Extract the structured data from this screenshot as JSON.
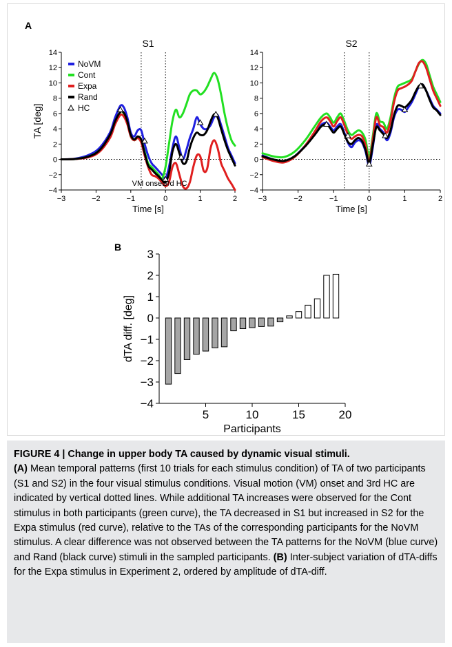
{
  "figure": {
    "panel_a_label": "A",
    "panel_b_label": "B",
    "subplots": [
      {
        "title": "S1",
        "ylabel": "TA [deg]",
        "xlabel": "Time [s]"
      },
      {
        "title": "S2",
        "ylabel": "",
        "xlabel": "Time [s]"
      }
    ],
    "annotations": {
      "vm_onset": "VM onset",
      "third_hc": "3rd HC"
    },
    "legend": [
      {
        "label": "NoVM",
        "color": "#1f1fe0"
      },
      {
        "label": "Cont",
        "color": "#22e022"
      },
      {
        "label": "Expa",
        "color": "#e01f1f"
      },
      {
        "label": "Rand",
        "color": "#000000"
      },
      {
        "label": "HC",
        "marker": "triangle"
      }
    ]
  },
  "chart_data": [
    {
      "type": "line",
      "title": "S1",
      "xlabel": "Time [s]",
      "ylabel": "TA [deg]",
      "xlim": [
        -3,
        2
      ],
      "ylim": [
        -4,
        14
      ],
      "xticks": [
        -3,
        -2,
        -1,
        0,
        1,
        2
      ],
      "yticks": [
        -4,
        -2,
        0,
        2,
        4,
        6,
        8,
        10,
        12,
        14
      ],
      "vlines": [
        -0.7,
        0
      ],
      "hline": 0,
      "annotations": [
        "VM onset",
        "3rd HC"
      ],
      "series": [
        {
          "name": "NoVM",
          "color": "#1f1fe0",
          "x": [
            -3,
            -2.6,
            -2.2,
            -1.9,
            -1.6,
            -1.45,
            -1.3,
            -1.2,
            -1.1,
            -1.0,
            -0.9,
            -0.8,
            -0.7,
            -0.6,
            -0.5,
            -0.4,
            -0.3,
            -0.2,
            -0.1,
            0,
            0.1,
            0.2,
            0.3,
            0.4,
            0.5,
            0.6,
            0.7,
            0.8,
            0.9,
            1.0,
            1.1,
            1.2,
            1.3,
            1.4,
            1.5,
            1.6,
            1.7,
            1.8,
            1.9,
            2.0
          ],
          "y": [
            0,
            0.1,
            0.6,
            1.5,
            3.5,
            5.5,
            7,
            6.8,
            5.5,
            3.5,
            3,
            3.8,
            3.8,
            2,
            0.5,
            -0.5,
            -1,
            -1.5,
            -2,
            -2.5,
            -1,
            1.5,
            3,
            1.5,
            0,
            1.2,
            2.8,
            4,
            5.5,
            4.6,
            4,
            4,
            4.5,
            5.5,
            5.8,
            4.5,
            3,
            1.5,
            0.5,
            -0.5
          ]
        },
        {
          "name": "Cont",
          "color": "#22e022",
          "x": [
            -3,
            -2.6,
            -2.2,
            -1.9,
            -1.6,
            -1.45,
            -1.3,
            -1.2,
            -1.1,
            -1.0,
            -0.9,
            -0.8,
            -0.7,
            -0.6,
            -0.5,
            -0.4,
            -0.3,
            -0.2,
            -0.1,
            0,
            0.1,
            0.2,
            0.3,
            0.4,
            0.5,
            0.6,
            0.7,
            0.8,
            0.9,
            1.0,
            1.1,
            1.2,
            1.3,
            1.4,
            1.5,
            1.6,
            1.7,
            1.8,
            1.9,
            2.0
          ],
          "y": [
            0,
            0.05,
            0.4,
            1.2,
            3,
            4.8,
            6.2,
            6,
            4.8,
            3,
            2.5,
            2.8,
            2.5,
            1,
            -0.5,
            -1,
            -1.5,
            -2,
            -2.5,
            -1,
            2,
            5,
            6.5,
            5.5,
            6,
            7.2,
            8.5,
            9,
            9,
            8.5,
            8.8,
            9.5,
            10.5,
            11.3,
            10.5,
            8.5,
            6,
            4,
            2.5,
            1.8
          ]
        },
        {
          "name": "Expa",
          "color": "#e01f1f",
          "x": [
            -3,
            -2.6,
            -2.2,
            -1.9,
            -1.6,
            -1.45,
            -1.3,
            -1.2,
            -1.1,
            -1.0,
            -0.9,
            -0.8,
            -0.7,
            -0.6,
            -0.5,
            -0.4,
            -0.3,
            -0.2,
            -0.1,
            0,
            0.1,
            0.2,
            0.3,
            0.4,
            0.5,
            0.6,
            0.7,
            0.8,
            0.9,
            1.0,
            1.1,
            1.2,
            1.3,
            1.4,
            1.5,
            1.6,
            1.7,
            1.8,
            1.9,
            2.0
          ],
          "y": [
            0,
            0.05,
            0.3,
            1,
            2.8,
            4.6,
            5.8,
            5.6,
            4.6,
            3,
            2.5,
            2.8,
            2.2,
            0.5,
            -1,
            -2,
            -2.2,
            -2.5,
            -3,
            -3.5,
            -3,
            -1,
            -0.5,
            -2,
            -3.5,
            -3.8,
            -3,
            -1,
            0.5,
            0.4,
            -1.5,
            -1.2,
            1.5,
            2.5,
            1.5,
            -0.5,
            -1.5,
            -2.5,
            -3.2,
            -4
          ]
        },
        {
          "name": "Rand",
          "color": "#000000",
          "x": [
            -3,
            -2.6,
            -2.2,
            -1.9,
            -1.6,
            -1.45,
            -1.3,
            -1.2,
            -1.1,
            -1.0,
            -0.9,
            -0.8,
            -0.7,
            -0.6,
            -0.5,
            -0.4,
            -0.3,
            -0.2,
            -0.1,
            0,
            0.1,
            0.2,
            0.3,
            0.4,
            0.5,
            0.6,
            0.7,
            0.8,
            0.9,
            1.0,
            1.1,
            1.2,
            1.3,
            1.4,
            1.5,
            1.6,
            1.7,
            1.8,
            1.9,
            2.0
          ],
          "y": [
            0,
            0.05,
            0.4,
            1.2,
            3.2,
            5,
            6.2,
            6.1,
            5,
            3.2,
            2.6,
            3,
            2.6,
            0.8,
            -0.8,
            -1.3,
            -1.8,
            -2.2,
            -2.7,
            -3,
            -1.8,
            1,
            2,
            0.8,
            -0.5,
            -0.3,
            1.5,
            2.8,
            3.5,
            3.2,
            3.2,
            3.8,
            5,
            5.9,
            5.5,
            4,
            2.5,
            1.2,
            0.2,
            -0.8
          ]
        }
      ],
      "hc_markers": {
        "x": [
          -1.3,
          -0.6,
          0,
          0.45,
          1.0,
          1.45
        ],
        "y": [
          6.5,
          2.4,
          -2.6,
          0.3,
          4.8,
          5.9
        ]
      }
    },
    {
      "type": "line",
      "title": "S2",
      "xlabel": "Time [s]",
      "ylabel": "",
      "xlim": [
        -3,
        2
      ],
      "ylim": [
        -4,
        14
      ],
      "xticks": [
        -3,
        -2,
        -1,
        0,
        1,
        2
      ],
      "yticks": [
        -4,
        -2,
        0,
        2,
        4,
        6,
        8,
        10,
        12,
        14
      ],
      "vlines": [
        -0.7,
        0
      ],
      "hline": 0,
      "series": [
        {
          "name": "NoVM",
          "color": "#1f1fe0",
          "x": [
            -3,
            -2.7,
            -2.4,
            -2.1,
            -1.8,
            -1.55,
            -1.35,
            -1.2,
            -1.1,
            -1.0,
            -0.9,
            -0.8,
            -0.7,
            -0.6,
            -0.5,
            -0.4,
            -0.3,
            -0.2,
            -0.1,
            0,
            0.1,
            0.2,
            0.3,
            0.4,
            0.5,
            0.6,
            0.7,
            0.8,
            0.9,
            1.0,
            1.1,
            1.2,
            1.3,
            1.4,
            1.5,
            1.6,
            1.7,
            1.8,
            1.9,
            2.0
          ],
          "y": [
            0.5,
            0,
            -0.3,
            0.4,
            1.8,
            3.3,
            4.5,
            4.8,
            4.3,
            3.8,
            4.3,
            4.6,
            3.5,
            2.2,
            1.6,
            2.2,
            2.5,
            2.2,
            1,
            -0.8,
            1.5,
            4.5,
            4,
            3.5,
            2.5,
            3.5,
            5.5,
            6.5,
            6.5,
            6.2,
            6.8,
            7.5,
            8.5,
            9.5,
            9.8,
            9,
            8,
            7,
            6.5,
            6
          ]
        },
        {
          "name": "Cont",
          "color": "#22e022",
          "x": [
            -3,
            -2.7,
            -2.4,
            -2.1,
            -1.8,
            -1.55,
            -1.35,
            -1.2,
            -1.1,
            -1.0,
            -0.9,
            -0.8,
            -0.7,
            -0.6,
            -0.5,
            -0.4,
            -0.3,
            -0.2,
            -0.1,
            0,
            0.1,
            0.2,
            0.3,
            0.4,
            0.5,
            0.6,
            0.7,
            0.8,
            0.9,
            1.0,
            1.1,
            1.2,
            1.3,
            1.4,
            1.5,
            1.6,
            1.7,
            1.8,
            1.9,
            2.0
          ],
          "y": [
            0.8,
            0.4,
            0.3,
            1,
            2.5,
            4.2,
            5.5,
            6,
            5.5,
            4.8,
            5.5,
            6,
            5,
            3.8,
            3.2,
            3.5,
            3.8,
            3.5,
            2.5,
            0.3,
            3,
            6,
            5,
            4.8,
            4,
            5.5,
            8,
            9.5,
            9.8,
            10,
            10.2,
            10.5,
            11.5,
            12.5,
            13,
            12.5,
            11,
            9.5,
            8.5,
            7.5
          ]
        },
        {
          "name": "Expa",
          "color": "#e01f1f",
          "x": [
            -3,
            -2.7,
            -2.4,
            -2.1,
            -1.8,
            -1.55,
            -1.35,
            -1.2,
            -1.1,
            -1.0,
            -0.9,
            -0.8,
            -0.7,
            -0.6,
            -0.5,
            -0.4,
            -0.3,
            -0.2,
            -0.1,
            0,
            0.1,
            0.2,
            0.3,
            0.4,
            0.5,
            0.6,
            0.7,
            0.8,
            0.9,
            1.0,
            1.1,
            1.2,
            1.3,
            1.4,
            1.5,
            1.6,
            1.7,
            1.8,
            1.9,
            2.0
          ],
          "y": [
            0.3,
            -0.2,
            -0.4,
            0.3,
            1.8,
            3.5,
            5,
            5.5,
            5,
            4.3,
            5,
            5.5,
            4.5,
            3.3,
            2.7,
            3,
            3.2,
            3,
            1.8,
            -0.3,
            2.5,
            5.5,
            4.5,
            4.2,
            3.5,
            5,
            7.5,
            9,
            9.3,
            9.5,
            9.8,
            10.3,
            11.5,
            12.6,
            12.8,
            12,
            10.5,
            9,
            8,
            7
          ]
        },
        {
          "name": "Rand",
          "color": "#000000",
          "x": [
            -3,
            -2.7,
            -2.4,
            -2.1,
            -1.8,
            -1.55,
            -1.35,
            -1.2,
            -1.1,
            -1.0,
            -0.9,
            -0.8,
            -0.7,
            -0.6,
            -0.5,
            -0.4,
            -0.3,
            -0.2,
            -0.1,
            0,
            0.1,
            0.2,
            0.3,
            0.4,
            0.5,
            0.6,
            0.7,
            0.8,
            0.9,
            1.0,
            1.1,
            1.2,
            1.3,
            1.4,
            1.5,
            1.6,
            1.7,
            1.8,
            1.9,
            2.0
          ],
          "y": [
            0.4,
            0,
            -0.2,
            0.4,
            1.7,
            3.1,
            4.3,
            4.6,
            4.1,
            3.5,
            4,
            4.3,
            3.3,
            2.3,
            2,
            2.5,
            2.8,
            2.4,
            1.2,
            -0.5,
            1.8,
            4.2,
            3.8,
            3.3,
            2.8,
            3.8,
            5.8,
            7,
            7,
            6.8,
            7.2,
            7.8,
            8.8,
            9.6,
            9.8,
            9,
            7.8,
            6.8,
            6.4,
            5.8
          ]
        }
      ],
      "hc_markers": {
        "x": [
          -1.2,
          -0.6,
          0,
          0.45,
          1.0,
          1.45
        ],
        "y": [
          4.6,
          3.1,
          -0.6,
          3.1,
          6.5,
          9.6
        ]
      }
    },
    {
      "type": "bar",
      "title": "",
      "xlabel": "Participants",
      "ylabel": "dTA diff.  [deg]",
      "xlim": [
        0,
        20
      ],
      "ylim": [
        -4,
        3
      ],
      "xticks": [
        5,
        10,
        15,
        20
      ],
      "yticks": [
        -4,
        -3,
        -2,
        -1,
        0,
        1,
        2,
        3
      ],
      "categories": [
        1,
        2,
        3,
        4,
        5,
        6,
        7,
        8,
        9,
        10,
        11,
        12,
        13,
        14,
        15,
        16,
        17,
        18,
        19
      ],
      "values": [
        -3.1,
        -2.6,
        -1.95,
        -1.7,
        -1.55,
        -1.4,
        -1.35,
        -0.6,
        -0.5,
        -0.45,
        -0.4,
        -0.38,
        -0.18,
        0.1,
        0.3,
        0.6,
        0.9,
        2.0,
        2.05
      ],
      "negative_color": "#a6a6a6",
      "positive_color": "#ffffff"
    }
  ],
  "caption": {
    "title": "FIGURE 4 | Change in upper body TA caused by dynamic visual stimuli.",
    "a_label": "(A)",
    "a_text": " Mean temporal patterns (first 10 trials for each stimulus condition) of TA of two participants (S1 and S2) in the four visual stimulus conditions. Visual motion (VM) onset and 3rd HC are indicated by vertical dotted lines. While additional TA increases were observed for the Cont stimulus in both participants (green curve), the TA decreased in S1 but increased in S2 for the Expa stimulus (red curve), relative to the TAs of the corresponding participants for the NoVM stimulus. A clear difference was not observed between the TA patterns for the NoVM (blue curve) and Rand (black curve) stimuli in the sampled participants.",
    "b_label": "(B)",
    "b_text": " Inter-subject variation of dTA-diffs for the Expa stimulus in Experiment 2, ordered by amplitude of dTA-diff."
  }
}
